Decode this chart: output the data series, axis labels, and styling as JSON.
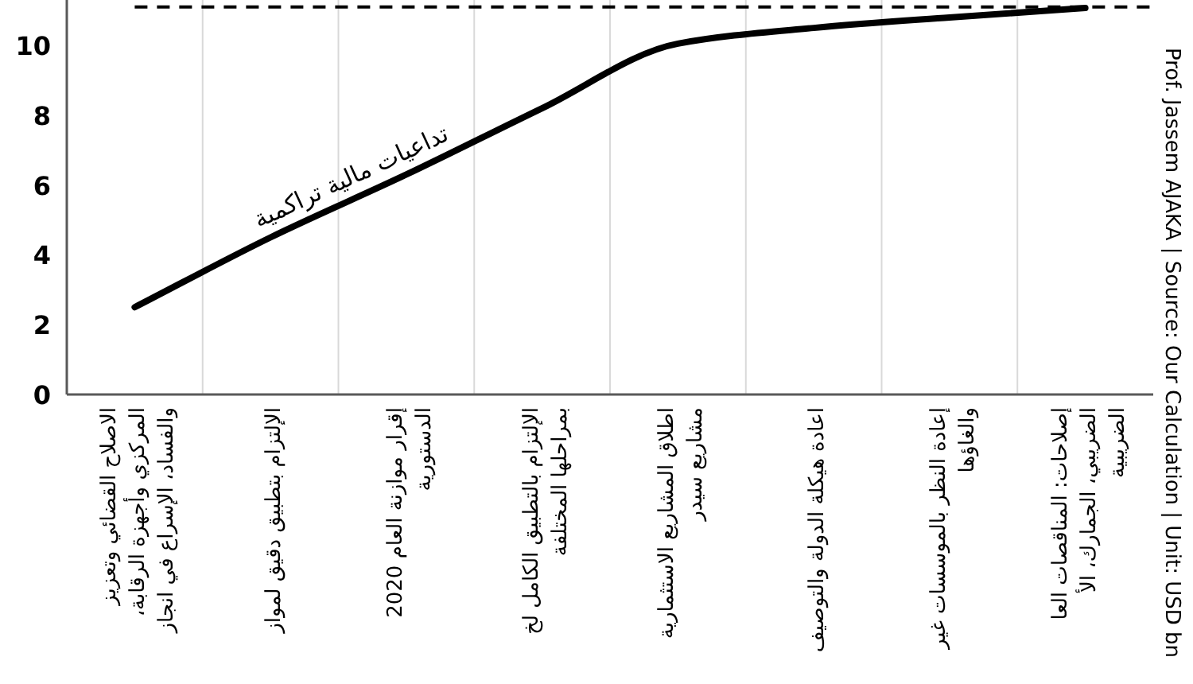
{
  "chart_data": {
    "type": "line",
    "categories": [
      "الاصلاح القضائي وتعزيز\nالمركزي وأجهزة الرقابة،\nوالفساد، الإسراع في انجاز",
      "الإلتزام بتطبيق دقيق لمواز",
      "إقرار موازنة العام 2020\nالدستورية",
      "الإلتزام بالتطبيق الكامل لخ\nبمراحلها المختلفة",
      "اطلاق المشاريع الاستثمارية\nمشاريع سيدر",
      "اعادة هيكلة الدولة والتوصيف",
      "إعادة النظر بالموسسات غير\nوالغاؤها",
      "إصلاحات: المناقصات العا\nالضريبي، الجمارك، الأ\nالضريبية"
    ],
    "series": [
      {
        "color": "#000000",
        "values": [
          2.5,
          4.5,
          6.3,
          8.2,
          10.05,
          10.5,
          10.8,
          11.07
        ]
      }
    ],
    "ylim": [
      0,
      11.3
    ],
    "yticks": [
      0,
      2,
      4,
      6,
      8,
      10
    ],
    "grid": "x",
    "line_style": "solid",
    "ref_lines": [
      {
        "axis": "y",
        "value": 11.1,
        "color": "#000000",
        "line_style": "dashed"
      }
    ],
    "annotations": [
      "تداعيات مالية تراكمية",
      "Prof. Jassem AJAKA | Source: Our Calculation | Unit: USD bn"
    ]
  }
}
